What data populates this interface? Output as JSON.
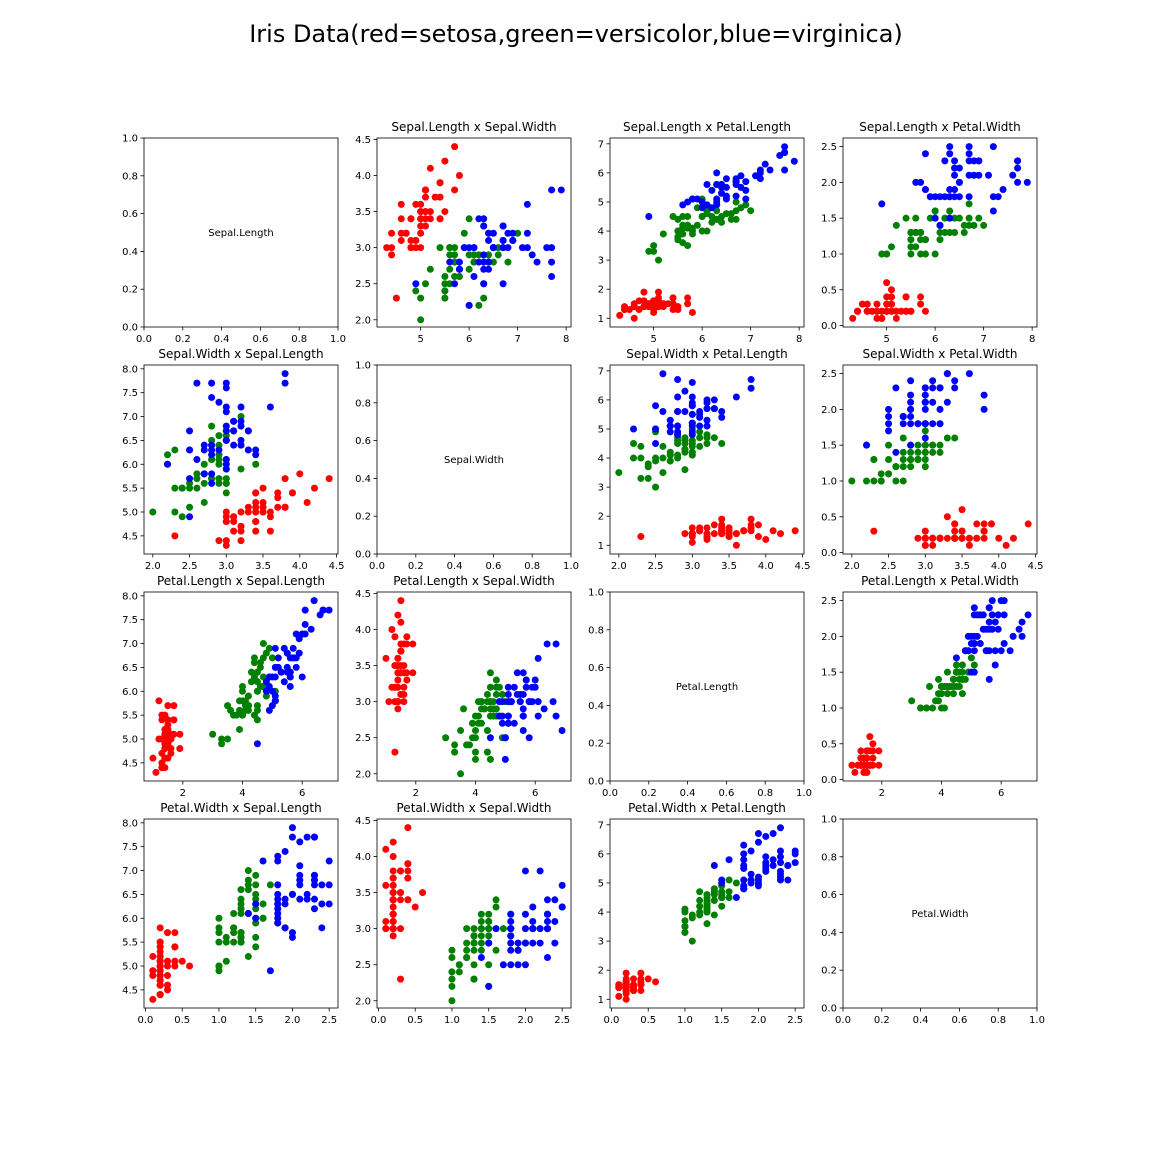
{
  "suptitle": "Iris Data(red=setosa,green=versicolor,blue=virginica)",
  "colors": {
    "setosa": "#ff0000",
    "versicolor": "#008000",
    "virginica": "#0000ff"
  },
  "variables": [
    "Sepal.Length",
    "Sepal.Width",
    "Petal.Length",
    "Petal.Width"
  ],
  "chart_data": [
    {
      "type": "text",
      "title": "",
      "text": "Sepal.Length",
      "xlim": [
        0,
        1
      ],
      "ylim": [
        0,
        1
      ],
      "xticks": [
        "0.0",
        "0.2",
        "0.4",
        "0.6",
        "0.8",
        "1.0"
      ],
      "yticks": [
        "0.0",
        "0.2",
        "0.4",
        "0.6",
        "0.8",
        "1.0"
      ]
    },
    {
      "type": "scatter",
      "title": "Sepal.Length x Sepal.Width",
      "xvar": 0,
      "yvar": 1,
      "xlim": [
        4.1,
        8.1
      ],
      "ylim": [
        1.9,
        4.52
      ],
      "xticks": [
        "5",
        "6",
        "7",
        "8"
      ],
      "yticks": [
        "2.0",
        "2.5",
        "3.0",
        "3.5",
        "4.0",
        "4.5"
      ]
    },
    {
      "type": "scatter",
      "title": "Sepal.Length x Petal.Length",
      "xvar": 0,
      "yvar": 2,
      "xlim": [
        4.1,
        8.1
      ],
      "ylim": [
        0.7,
        7.2
      ],
      "xticks": [
        "5",
        "6",
        "7",
        "8"
      ],
      "yticks": [
        "1",
        "2",
        "3",
        "4",
        "5",
        "6",
        "7"
      ]
    },
    {
      "type": "scatter",
      "title": "Sepal.Length x Petal.Width",
      "xvar": 0,
      "yvar": 3,
      "xlim": [
        4.1,
        8.1
      ],
      "ylim": [
        -0.02,
        2.62
      ],
      "xticks": [
        "5",
        "6",
        "7",
        "8"
      ],
      "yticks": [
        "0.0",
        "0.5",
        "1.0",
        "1.5",
        "2.0",
        "2.5"
      ]
    },
    {
      "type": "scatter",
      "title": "Sepal.Width x Sepal.Length",
      "xvar": 1,
      "yvar": 0,
      "xlim": [
        1.88,
        4.52
      ],
      "ylim": [
        4.12,
        8.08
      ],
      "xticks": [
        "2.0",
        "2.5",
        "3.0",
        "3.5",
        "4.0",
        "4.5"
      ],
      "yticks": [
        "4.5",
        "5.0",
        "5.5",
        "6.0",
        "6.5",
        "7.0",
        "7.5",
        "8.0"
      ]
    },
    {
      "type": "text",
      "title": "",
      "text": "Sepal.Width",
      "xlim": [
        0,
        1
      ],
      "ylim": [
        0,
        1
      ],
      "xticks": [
        "0.0",
        "0.2",
        "0.4",
        "0.6",
        "0.8",
        "1.0"
      ],
      "yticks": [
        "0.0",
        "0.2",
        "0.4",
        "0.6",
        "0.8",
        "1.0"
      ]
    },
    {
      "type": "scatter",
      "title": "Sepal.Width x Petal.Length",
      "xvar": 1,
      "yvar": 2,
      "xlim": [
        1.88,
        4.52
      ],
      "ylim": [
        0.7,
        7.2
      ],
      "xticks": [
        "2.0",
        "2.5",
        "3.0",
        "3.5",
        "4.0",
        "4.5"
      ],
      "yticks": [
        "1",
        "2",
        "3",
        "4",
        "5",
        "6",
        "7"
      ]
    },
    {
      "type": "scatter",
      "title": "Sepal.Width x Petal.Width",
      "xvar": 1,
      "yvar": 3,
      "xlim": [
        1.88,
        4.52
      ],
      "ylim": [
        -0.02,
        2.62
      ],
      "xticks": [
        "2.0",
        "2.5",
        "3.0",
        "3.5",
        "4.0",
        "4.5"
      ],
      "yticks": [
        "0.0",
        "0.5",
        "1.0",
        "1.5",
        "2.0",
        "2.5"
      ]
    },
    {
      "type": "scatter",
      "title": "Petal.Length x Sepal.Length",
      "xvar": 2,
      "yvar": 0,
      "xlim": [
        0.7,
        7.2
      ],
      "ylim": [
        4.12,
        8.08
      ],
      "xticks": [
        "2",
        "4",
        "6"
      ],
      "yticks": [
        "4.5",
        "5.0",
        "5.5",
        "6.0",
        "6.5",
        "7.0",
        "7.5",
        "8.0"
      ]
    },
    {
      "type": "scatter",
      "title": "Petal.Length x Sepal.Width",
      "xvar": 2,
      "yvar": 1,
      "xlim": [
        0.7,
        7.2
      ],
      "ylim": [
        1.9,
        4.52
      ],
      "xticks": [
        "2",
        "4",
        "6"
      ],
      "yticks": [
        "2.0",
        "2.5",
        "3.0",
        "3.5",
        "4.0",
        "4.5"
      ]
    },
    {
      "type": "text",
      "title": "",
      "text": "Petal.Length",
      "xlim": [
        0,
        1
      ],
      "ylim": [
        0,
        1
      ],
      "xticks": [
        "0.0",
        "0.2",
        "0.4",
        "0.6",
        "0.8",
        "1.0"
      ],
      "yticks": [
        "0.0",
        "0.2",
        "0.4",
        "0.6",
        "0.8",
        "1.0"
      ]
    },
    {
      "type": "scatter",
      "title": "Petal.Length x Petal.Width",
      "xvar": 2,
      "yvar": 3,
      "xlim": [
        0.7,
        7.2
      ],
      "ylim": [
        -0.02,
        2.62
      ],
      "xticks": [
        "2",
        "4",
        "6"
      ],
      "yticks": [
        "0.0",
        "0.5",
        "1.0",
        "1.5",
        "2.0",
        "2.5"
      ]
    },
    {
      "type": "scatter",
      "title": "Petal.Width x Sepal.Length",
      "xvar": 3,
      "yvar": 0,
      "xlim": [
        -0.02,
        2.62
      ],
      "ylim": [
        4.12,
        8.08
      ],
      "xticks": [
        "0.0",
        "0.5",
        "1.0",
        "1.5",
        "2.0",
        "2.5"
      ],
      "yticks": [
        "4.5",
        "5.0",
        "5.5",
        "6.0",
        "6.5",
        "7.0",
        "7.5",
        "8.0"
      ]
    },
    {
      "type": "scatter",
      "title": "Petal.Width x Sepal.Width",
      "xvar": 3,
      "yvar": 1,
      "xlim": [
        -0.02,
        2.62
      ],
      "ylim": [
        1.9,
        4.52
      ],
      "xticks": [
        "0.0",
        "0.5",
        "1.0",
        "1.5",
        "2.0",
        "2.5"
      ],
      "yticks": [
        "2.0",
        "2.5",
        "3.0",
        "3.5",
        "4.0",
        "4.5"
      ]
    },
    {
      "type": "scatter",
      "title": "Petal.Width x Petal.Length",
      "xvar": 3,
      "yvar": 2,
      "xlim": [
        -0.02,
        2.62
      ],
      "ylim": [
        0.7,
        7.2
      ],
      "xticks": [
        "0.0",
        "0.5",
        "1.0",
        "1.5",
        "2.0",
        "2.5"
      ],
      "yticks": [
        "1",
        "2",
        "3",
        "4",
        "5",
        "6",
        "7"
      ]
    },
    {
      "type": "text",
      "title": "",
      "text": "Petal.Width",
      "xlim": [
        0,
        1
      ],
      "ylim": [
        0,
        1
      ],
      "xticks": [
        "0.0",
        "0.2",
        "0.4",
        "0.6",
        "0.8",
        "1.0"
      ],
      "yticks": [
        "0.0",
        "0.2",
        "0.4",
        "0.6",
        "0.8",
        "1.0"
      ]
    }
  ],
  "iris": {
    "setosa": [
      [
        5.1,
        3.5,
        1.4,
        0.2
      ],
      [
        4.9,
        3.0,
        1.4,
        0.2
      ],
      [
        4.7,
        3.2,
        1.3,
        0.2
      ],
      [
        4.6,
        3.1,
        1.5,
        0.2
      ],
      [
        5.0,
        3.6,
        1.4,
        0.2
      ],
      [
        5.4,
        3.9,
        1.7,
        0.4
      ],
      [
        4.6,
        3.4,
        1.4,
        0.3
      ],
      [
        5.0,
        3.4,
        1.5,
        0.2
      ],
      [
        4.4,
        2.9,
        1.4,
        0.2
      ],
      [
        4.9,
        3.1,
        1.5,
        0.1
      ],
      [
        5.4,
        3.7,
        1.5,
        0.2
      ],
      [
        4.8,
        3.4,
        1.6,
        0.2
      ],
      [
        4.8,
        3.0,
        1.4,
        0.1
      ],
      [
        4.3,
        3.0,
        1.1,
        0.1
      ],
      [
        5.8,
        4.0,
        1.2,
        0.2
      ],
      [
        5.7,
        4.4,
        1.5,
        0.4
      ],
      [
        5.4,
        3.9,
        1.3,
        0.4
      ],
      [
        5.1,
        3.5,
        1.4,
        0.3
      ],
      [
        5.7,
        3.8,
        1.7,
        0.3
      ],
      [
        5.1,
        3.8,
        1.5,
        0.3
      ],
      [
        5.4,
        3.4,
        1.7,
        0.2
      ],
      [
        5.1,
        3.7,
        1.5,
        0.4
      ],
      [
        4.6,
        3.6,
        1.0,
        0.2
      ],
      [
        5.1,
        3.3,
        1.7,
        0.5
      ],
      [
        4.8,
        3.4,
        1.9,
        0.2
      ],
      [
        5.0,
        3.0,
        1.6,
        0.2
      ],
      [
        5.0,
        3.4,
        1.6,
        0.4
      ],
      [
        5.2,
        3.5,
        1.5,
        0.2
      ],
      [
        5.2,
        3.4,
        1.4,
        0.2
      ],
      [
        4.7,
        3.2,
        1.6,
        0.2
      ],
      [
        4.8,
        3.1,
        1.6,
        0.2
      ],
      [
        5.4,
        3.4,
        1.5,
        0.4
      ],
      [
        5.2,
        4.1,
        1.5,
        0.1
      ],
      [
        5.5,
        4.2,
        1.4,
        0.2
      ],
      [
        4.9,
        3.1,
        1.5,
        0.2
      ],
      [
        5.0,
        3.2,
        1.2,
        0.2
      ],
      [
        5.5,
        3.5,
        1.3,
        0.2
      ],
      [
        4.9,
        3.6,
        1.4,
        0.1
      ],
      [
        4.4,
        3.0,
        1.3,
        0.2
      ],
      [
        5.1,
        3.4,
        1.5,
        0.2
      ],
      [
        5.0,
        3.5,
        1.3,
        0.3
      ],
      [
        4.5,
        2.3,
        1.3,
        0.3
      ],
      [
        4.4,
        3.2,
        1.3,
        0.2
      ],
      [
        5.0,
        3.5,
        1.6,
        0.6
      ],
      [
        5.1,
        3.8,
        1.9,
        0.4
      ],
      [
        4.8,
        3.0,
        1.4,
        0.3
      ],
      [
        5.1,
        3.8,
        1.6,
        0.2
      ],
      [
        4.6,
        3.2,
        1.4,
        0.2
      ],
      [
        5.3,
        3.7,
        1.5,
        0.2
      ],
      [
        5.0,
        3.3,
        1.4,
        0.2
      ]
    ],
    "versicolor": [
      [
        7.0,
        3.2,
        4.7,
        1.4
      ],
      [
        6.4,
        3.2,
        4.5,
        1.5
      ],
      [
        6.9,
        3.1,
        4.9,
        1.5
      ],
      [
        5.5,
        2.3,
        4.0,
        1.3
      ],
      [
        6.5,
        2.8,
        4.6,
        1.5
      ],
      [
        5.7,
        2.8,
        4.5,
        1.3
      ],
      [
        6.3,
        3.3,
        4.7,
        1.6
      ],
      [
        4.9,
        2.4,
        3.3,
        1.0
      ],
      [
        6.6,
        2.9,
        4.6,
        1.3
      ],
      [
        5.2,
        2.7,
        3.9,
        1.4
      ],
      [
        5.0,
        2.0,
        3.5,
        1.0
      ],
      [
        5.9,
        3.0,
        4.2,
        1.5
      ],
      [
        6.0,
        2.2,
        4.0,
        1.0
      ],
      [
        6.1,
        2.9,
        4.7,
        1.4
      ],
      [
        5.6,
        2.9,
        3.6,
        1.3
      ],
      [
        6.7,
        3.1,
        4.4,
        1.4
      ],
      [
        5.6,
        3.0,
        4.5,
        1.5
      ],
      [
        5.8,
        2.7,
        4.1,
        1.0
      ],
      [
        6.2,
        2.2,
        4.5,
        1.5
      ],
      [
        5.6,
        2.5,
        3.9,
        1.1
      ],
      [
        5.9,
        3.2,
        4.8,
        1.8
      ],
      [
        6.1,
        2.8,
        4.0,
        1.3
      ],
      [
        6.3,
        2.5,
        4.9,
        1.5
      ],
      [
        6.1,
        2.8,
        4.7,
        1.2
      ],
      [
        6.4,
        2.9,
        4.3,
        1.3
      ],
      [
        6.6,
        3.0,
        4.4,
        1.4
      ],
      [
        6.8,
        2.8,
        4.8,
        1.4
      ],
      [
        6.7,
        3.0,
        5.0,
        1.7
      ],
      [
        6.0,
        2.9,
        4.5,
        1.5
      ],
      [
        5.7,
        2.6,
        3.5,
        1.0
      ],
      [
        5.5,
        2.4,
        3.8,
        1.1
      ],
      [
        5.5,
        2.4,
        3.7,
        1.0
      ],
      [
        5.8,
        2.7,
        3.9,
        1.2
      ],
      [
        6.0,
        2.7,
        5.1,
        1.6
      ],
      [
        5.4,
        3.0,
        4.5,
        1.5
      ],
      [
        6.0,
        3.4,
        4.5,
        1.6
      ],
      [
        6.7,
        3.1,
        4.7,
        1.5
      ],
      [
        6.3,
        2.3,
        4.4,
        1.3
      ],
      [
        5.6,
        3.0,
        4.1,
        1.3
      ],
      [
        5.5,
        2.5,
        4.0,
        1.3
      ],
      [
        5.5,
        2.6,
        4.4,
        1.2
      ],
      [
        6.1,
        3.0,
        4.6,
        1.4
      ],
      [
        5.8,
        2.6,
        4.0,
        1.2
      ],
      [
        5.0,
        2.3,
        3.3,
        1.0
      ],
      [
        5.6,
        2.7,
        4.2,
        1.3
      ],
      [
        5.7,
        3.0,
        4.2,
        1.2
      ],
      [
        5.7,
        2.9,
        4.2,
        1.3
      ],
      [
        6.2,
        2.9,
        4.3,
        1.3
      ],
      [
        5.1,
        2.5,
        3.0,
        1.1
      ],
      [
        5.7,
        2.8,
        4.1,
        1.3
      ]
    ],
    "virginica": [
      [
        6.3,
        3.3,
        6.0,
        2.5
      ],
      [
        5.8,
        2.7,
        5.1,
        1.9
      ],
      [
        7.1,
        3.0,
        5.9,
        2.1
      ],
      [
        6.3,
        2.9,
        5.6,
        1.8
      ],
      [
        6.5,
        3.0,
        5.8,
        2.2
      ],
      [
        7.6,
        3.0,
        6.6,
        2.1
      ],
      [
        4.9,
        2.5,
        4.5,
        1.7
      ],
      [
        7.3,
        2.9,
        6.3,
        1.8
      ],
      [
        6.7,
        2.5,
        5.8,
        1.8
      ],
      [
        7.2,
        3.6,
        6.1,
        2.5
      ],
      [
        6.5,
        3.2,
        5.1,
        2.0
      ],
      [
        6.4,
        2.7,
        5.3,
        1.9
      ],
      [
        6.8,
        3.0,
        5.5,
        2.1
      ],
      [
        5.7,
        2.5,
        5.0,
        2.0
      ],
      [
        5.8,
        2.8,
        5.1,
        2.4
      ],
      [
        6.4,
        3.2,
        5.3,
        2.3
      ],
      [
        6.5,
        3.0,
        5.5,
        1.8
      ],
      [
        7.7,
        3.8,
        6.7,
        2.2
      ],
      [
        7.7,
        2.6,
        6.9,
        2.3
      ],
      [
        6.0,
        2.2,
        5.0,
        1.5
      ],
      [
        6.9,
        3.2,
        5.7,
        2.3
      ],
      [
        5.6,
        2.8,
        4.9,
        2.0
      ],
      [
        7.7,
        2.8,
        6.7,
        2.0
      ],
      [
        6.3,
        2.7,
        4.9,
        1.8
      ],
      [
        6.7,
        3.3,
        5.7,
        2.1
      ],
      [
        7.2,
        3.2,
        6.0,
        1.8
      ],
      [
        6.2,
        2.8,
        4.8,
        1.8
      ],
      [
        6.1,
        3.0,
        4.9,
        1.8
      ],
      [
        6.4,
        2.8,
        5.6,
        2.1
      ],
      [
        7.2,
        3.0,
        5.8,
        1.6
      ],
      [
        7.4,
        2.8,
        6.1,
        1.9
      ],
      [
        7.9,
        3.8,
        6.4,
        2.0
      ],
      [
        6.4,
        2.8,
        5.6,
        2.2
      ],
      [
        6.3,
        2.8,
        5.1,
        1.5
      ],
      [
        6.1,
        2.6,
        5.6,
        1.4
      ],
      [
        7.7,
        3.0,
        6.1,
        2.3
      ],
      [
        6.3,
        3.4,
        5.6,
        2.4
      ],
      [
        6.4,
        3.1,
        5.5,
        1.8
      ],
      [
        6.0,
        3.0,
        4.8,
        1.8
      ],
      [
        6.9,
        3.1,
        5.4,
        2.1
      ],
      [
        6.7,
        3.1,
        5.6,
        2.4
      ],
      [
        6.9,
        3.1,
        5.1,
        2.3
      ],
      [
        5.8,
        2.7,
        5.1,
        1.9
      ],
      [
        6.8,
        3.2,
        5.9,
        2.3
      ],
      [
        6.7,
        3.3,
        5.7,
        2.5
      ],
      [
        6.7,
        3.0,
        5.2,
        2.3
      ],
      [
        6.3,
        2.5,
        5.0,
        1.9
      ],
      [
        6.5,
        3.0,
        5.2,
        2.0
      ],
      [
        6.2,
        3.4,
        5.4,
        2.3
      ],
      [
        5.9,
        3.0,
        5.1,
        1.8
      ]
    ]
  }
}
